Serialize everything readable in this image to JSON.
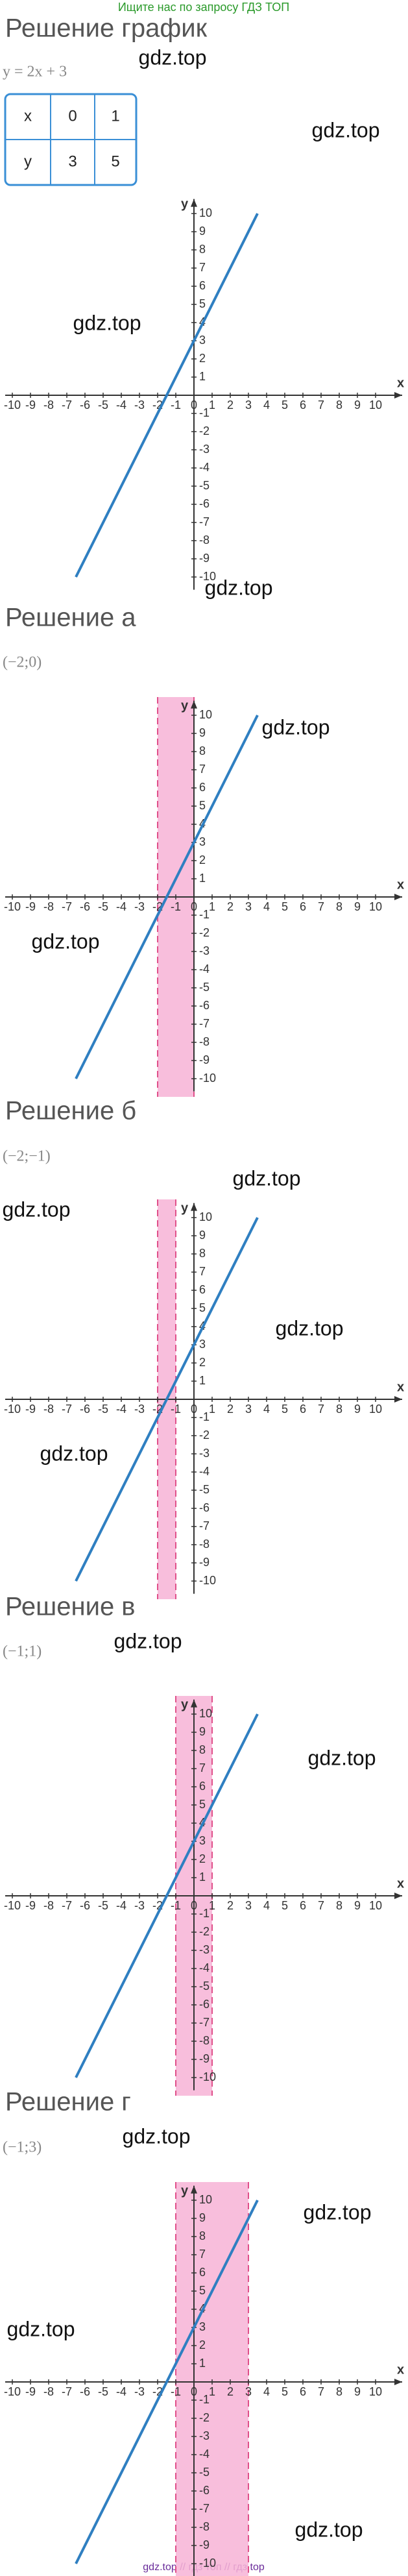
{
  "banner": "Ищите нас по запросу ГДЗ ТОП",
  "footer": "gdz.top // гдз топ // гдз.top",
  "axes": {
    "xlabel": "x",
    "ylabel": "y",
    "xticks": [
      -10,
      -9,
      -8,
      -7,
      -6,
      -5,
      -4,
      -3,
      -2,
      -1,
      0,
      1,
      2,
      3,
      4,
      5,
      6,
      7,
      8,
      9,
      10
    ],
    "yticks": [
      10,
      9,
      8,
      7,
      6,
      5,
      4,
      3,
      2,
      1,
      -1,
      -2,
      -3,
      -4,
      -5,
      -6,
      -7,
      -8,
      -9,
      -10
    ],
    "line": {
      "x": [
        -6.5,
        3.5
      ],
      "y": [
        -10,
        10
      ]
    }
  },
  "sections": [
    {
      "title": "Решение график",
      "formula": "y = 2x + 3",
      "table": {
        "rows": [
          [
            "x",
            0,
            1
          ],
          [
            "y",
            3,
            5
          ]
        ]
      }
    },
    {
      "title": "Решение а",
      "point": "(−2;0)",
      "band": [
        -2,
        0
      ]
    },
    {
      "title": "Решение б",
      "point": "(−2;−1)",
      "band": [
        -2,
        -1
      ]
    },
    {
      "title": "Решение в",
      "point": "(−1;1)",
      "band": [
        -1,
        1
      ]
    },
    {
      "title": "Решение г",
      "point": "(−1;3)",
      "band": [
        -1,
        3
      ]
    }
  ],
  "watermarks": [
    "gdz.top",
    "gdz.top",
    "gdz.top",
    "gdz.top",
    "gdz.top",
    "gdz.top",
    "gdz.top",
    "gdz.top",
    "gdz.top",
    "gdz.top",
    "gdz.top",
    "gdz.top",
    "gdz.top",
    "gdz.top",
    "gdz.top",
    "gdz.top"
  ]
}
